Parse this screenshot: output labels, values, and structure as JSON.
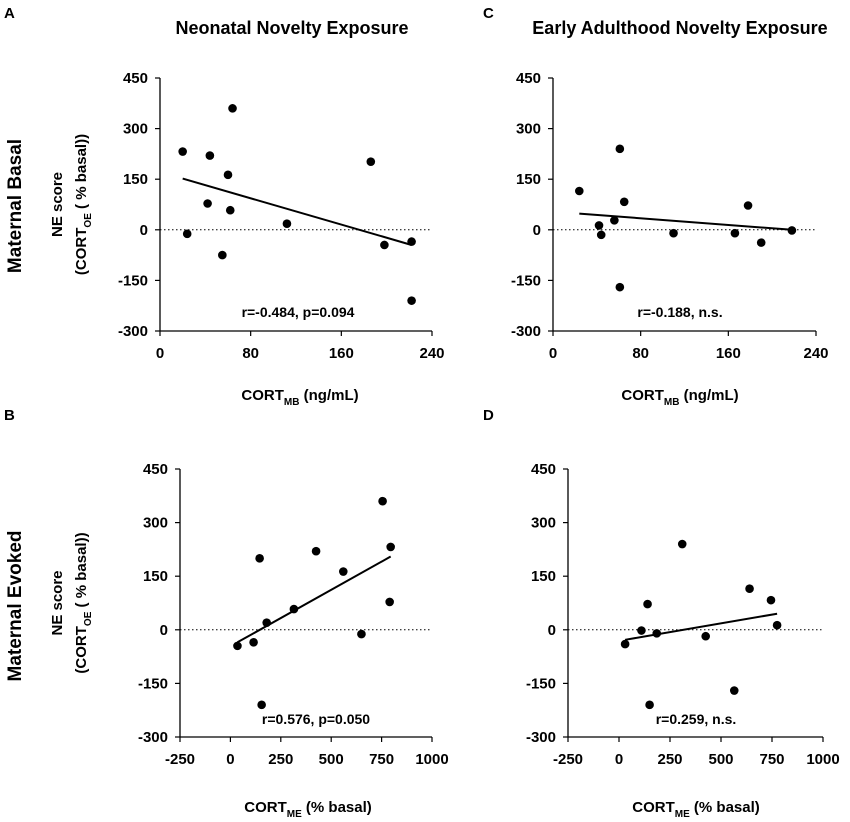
{
  "figure": {
    "column_titles": [
      "Neonatal Novelty Exposure",
      "Early Adulthood Novelty Exposure"
    ],
    "row_titles": [
      "Maternal Basal",
      "Maternal Evoked"
    ]
  },
  "chart_data": [
    {
      "panel": "A",
      "type": "scatter",
      "title": "Neonatal Novelty Exposure",
      "row": "Maternal Basal",
      "ylabel_line1": "NE score",
      "ylabel_main": "(CORT",
      "ylabel_sub": "OE",
      "ylabel_rest": " ( % basal))",
      "xlabel_main": "CORT",
      "xlabel_sub": "MB",
      "xlabel_rest": "  (ng/mL)",
      "xlim": [
        0,
        240
      ],
      "ylim": [
        -300,
        450
      ],
      "xticks": [
        0,
        80,
        160,
        240
      ],
      "yticks": [
        -300,
        -150,
        0,
        150,
        300,
        450
      ],
      "points": [
        [
          20,
          232
        ],
        [
          24,
          -12
        ],
        [
          42,
          78
        ],
        [
          44,
          220
        ],
        [
          55,
          -75
        ],
        [
          60,
          163
        ],
        [
          62,
          58
        ],
        [
          64,
          360
        ],
        [
          112,
          18
        ],
        [
          186,
          202
        ],
        [
          198,
          -45
        ],
        [
          222,
          -35
        ],
        [
          222,
          -210
        ]
      ],
      "fit": {
        "x": [
          20,
          222
        ],
        "y": [
          152,
          -45
        ]
      },
      "annotation": "r=-0.484, p=0.094"
    },
    {
      "panel": "C",
      "type": "scatter",
      "title": "Early Adulthood Novelty Exposure",
      "row": "Maternal Basal",
      "xlabel_main": "CORT",
      "xlabel_sub": "MB",
      "xlabel_rest": "  (ng/mL)",
      "xlim": [
        0,
        240
      ],
      "ylim": [
        -300,
        450
      ],
      "xticks": [
        0,
        80,
        160,
        240
      ],
      "yticks": [
        -300,
        -150,
        0,
        150,
        300,
        450
      ],
      "points": [
        [
          24,
          115
        ],
        [
          42,
          13
        ],
        [
          44,
          -15
        ],
        [
          56,
          28
        ],
        [
          61,
          240
        ],
        [
          61,
          -170
        ],
        [
          65,
          83
        ],
        [
          110,
          -10
        ],
        [
          166,
          -10
        ],
        [
          178,
          72
        ],
        [
          190,
          -38
        ],
        [
          218,
          -2
        ]
      ],
      "fit": {
        "x": [
          24,
          218
        ],
        "y": [
          48,
          0
        ]
      },
      "annotation": "r=-0.188, n.s."
    },
    {
      "panel": "B",
      "type": "scatter",
      "title": "Neonatal Novelty Exposure",
      "row": "Maternal Evoked",
      "ylabel_line1": "NE score",
      "ylabel_main": "(CORT",
      "ylabel_sub": "OE",
      "ylabel_rest": " ( % basal))",
      "xlabel_main": "CORT",
      "xlabel_sub": "ME",
      "xlabel_rest": " (% basal)",
      "xlim": [
        -250,
        1000
      ],
      "ylim": [
        -300,
        450
      ],
      "xticks": [
        -250,
        0,
        250,
        500,
        750,
        1000
      ],
      "yticks": [
        -300,
        -150,
        0,
        150,
        300,
        450
      ],
      "points": [
        [
          35,
          -45
        ],
        [
          115,
          -35
        ],
        [
          145,
          200
        ],
        [
          155,
          -210
        ],
        [
          180,
          20
        ],
        [
          315,
          58
        ],
        [
          425,
          220
        ],
        [
          560,
          163
        ],
        [
          650,
          -12
        ],
        [
          755,
          360
        ],
        [
          790,
          78
        ],
        [
          795,
          232
        ]
      ],
      "fit": {
        "x": [
          35,
          795
        ],
        "y": [
          -35,
          205
        ]
      },
      "annotation": "r=0.576, p=0.050"
    },
    {
      "panel": "D",
      "type": "scatter",
      "title": "Early Adulthood Novelty Exposure",
      "row": "Maternal Evoked",
      "xlabel_main": "CORT",
      "xlabel_sub": "ME",
      "xlabel_rest": " (% basal)",
      "xlim": [
        -250,
        1000
      ],
      "ylim": [
        -300,
        450
      ],
      "xticks": [
        -250,
        0,
        250,
        500,
        750,
        1000
      ],
      "yticks": [
        -300,
        -150,
        0,
        150,
        300,
        450
      ],
      "points": [
        [
          30,
          -40
        ],
        [
          110,
          -2
        ],
        [
          140,
          72
        ],
        [
          150,
          -210
        ],
        [
          185,
          -10
        ],
        [
          310,
          240
        ],
        [
          425,
          -18
        ],
        [
          565,
          -170
        ],
        [
          640,
          115
        ],
        [
          745,
          83
        ],
        [
          775,
          13
        ]
      ],
      "fit": {
        "x": [
          30,
          775
        ],
        "y": [
          -28,
          45
        ]
      },
      "annotation": "r=0.259, n.s."
    }
  ]
}
